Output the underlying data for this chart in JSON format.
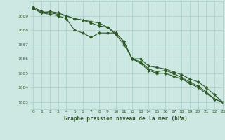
{
  "background_color": "#cde8e2",
  "grid_color": "#a8cec8",
  "line_color": "#2d5a27",
  "title": "Graphe pression niveau de la mer (hPa)",
  "xlim": [
    -0.5,
    23
  ],
  "ylim": [
    1002.5,
    1010.0
  ],
  "yticks": [
    1003,
    1004,
    1005,
    1006,
    1007,
    1008,
    1009
  ],
  "xticks": [
    0,
    1,
    2,
    3,
    4,
    5,
    6,
    7,
    8,
    9,
    10,
    11,
    12,
    13,
    14,
    15,
    16,
    17,
    18,
    19,
    20,
    21,
    22,
    23
  ],
  "line1_x": [
    0,
    1,
    2,
    3,
    4,
    5,
    6,
    7,
    8,
    9,
    10,
    11,
    12,
    13,
    14,
    15,
    16,
    17,
    18,
    19,
    20,
    21,
    22,
    23
  ],
  "line1_y": [
    1009.5,
    1009.2,
    1009.3,
    1009.2,
    1009.0,
    1008.8,
    1008.7,
    1008.5,
    1008.3,
    1008.2,
    1007.8,
    1007.2,
    1006.0,
    1006.0,
    1005.5,
    1005.4,
    1005.3,
    1005.1,
    1004.9,
    1004.6,
    1004.4,
    1004.0,
    1003.5,
    1003.0
  ],
  "line2_x": [
    0,
    1,
    2,
    3,
    4,
    5,
    6,
    7,
    8,
    9,
    10,
    11,
    12,
    13,
    14,
    15,
    16,
    17,
    18,
    19,
    20,
    21,
    22,
    23
  ],
  "line2_y": [
    1009.5,
    1009.2,
    1009.1,
    1009.0,
    1008.8,
    1008.0,
    1007.8,
    1007.5,
    1007.8,
    1007.8,
    1007.8,
    1007.2,
    1006.0,
    1005.8,
    1005.3,
    1005.1,
    1005.2,
    1005.0,
    1004.7,
    1004.4,
    1004.1,
    1003.7,
    1003.2,
    1003.0
  ],
  "line3_x": [
    0,
    1,
    2,
    3,
    4,
    5,
    6,
    7,
    8,
    9,
    10,
    11,
    12,
    13,
    14,
    15,
    16,
    17,
    18,
    19,
    20,
    21,
    22,
    23
  ],
  "line3_y": [
    1009.6,
    1009.3,
    1009.2,
    1009.1,
    1009.0,
    1008.8,
    1008.7,
    1008.6,
    1008.5,
    1008.2,
    1007.7,
    1007.0,
    1006.0,
    1005.7,
    1005.2,
    1005.0,
    1005.0,
    1004.8,
    1004.6,
    1004.3,
    1004.0,
    1003.6,
    1003.2,
    1003.0
  ]
}
